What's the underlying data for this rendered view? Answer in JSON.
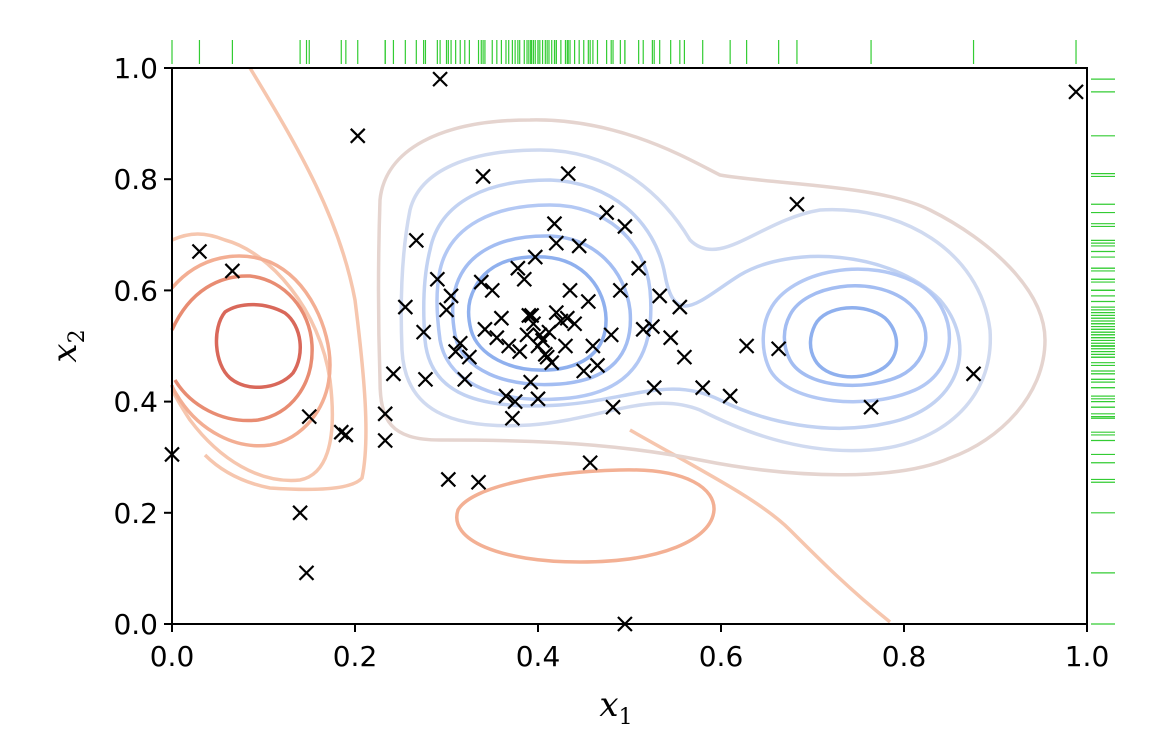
{
  "chart_data": {
    "type": "scatter",
    "xlabel": "x",
    "xlabel_sub": "1",
    "ylabel": "x",
    "ylabel_sub": "2",
    "xlim": [
      0.0,
      1.0
    ],
    "ylim": [
      0.0,
      1.0
    ],
    "xticks": [
      "0.0",
      "0.2",
      "0.4",
      "0.6",
      "0.8",
      "1.0"
    ],
    "yticks": [
      "0.0",
      "0.2",
      "0.4",
      "0.6",
      "0.8",
      "1.0"
    ],
    "grid": false,
    "marker": "x",
    "marker_color": "#000000",
    "rug_color": "#33cc33",
    "points": [
      [
        0.03,
        0.67
      ],
      [
        0.066,
        0.635
      ],
      [
        0.0,
        0.305
      ],
      [
        0.14,
        0.2
      ],
      [
        0.147,
        0.092
      ],
      [
        0.15,
        0.373
      ],
      [
        0.185,
        0.345
      ],
      [
        0.19,
        0.34
      ],
      [
        0.203,
        0.878
      ],
      [
        0.233,
        0.378
      ],
      [
        0.233,
        0.33
      ],
      [
        0.242,
        0.45
      ],
      [
        0.255,
        0.57
      ],
      [
        0.267,
        0.69
      ],
      [
        0.275,
        0.525
      ],
      [
        0.277,
        0.44
      ],
      [
        0.29,
        0.62
      ],
      [
        0.293,
        0.98
      ],
      [
        0.302,
        0.26
      ],
      [
        0.3,
        0.565
      ],
      [
        0.305,
        0.59
      ],
      [
        0.31,
        0.49
      ],
      [
        0.315,
        0.505
      ],
      [
        0.32,
        0.44
      ],
      [
        0.325,
        0.48
      ],
      [
        0.335,
        0.255
      ],
      [
        0.34,
        0.805
      ],
      [
        0.338,
        0.615
      ],
      [
        0.342,
        0.53
      ],
      [
        0.35,
        0.6
      ],
      [
        0.355,
        0.515
      ],
      [
        0.36,
        0.55
      ],
      [
        0.365,
        0.41
      ],
      [
        0.368,
        0.5
      ],
      [
        0.372,
        0.37
      ],
      [
        0.375,
        0.4
      ],
      [
        0.378,
        0.64
      ],
      [
        0.38,
        0.49
      ],
      [
        0.385,
        0.62
      ],
      [
        0.388,
        0.52
      ],
      [
        0.39,
        0.555
      ],
      [
        0.392,
        0.435
      ],
      [
        0.393,
        0.555
      ],
      [
        0.395,
        0.54
      ],
      [
        0.397,
        0.66
      ],
      [
        0.4,
        0.5
      ],
      [
        0.402,
        0.52
      ],
      [
        0.4,
        0.405
      ],
      [
        0.405,
        0.51
      ],
      [
        0.408,
        0.485
      ],
      [
        0.41,
        0.48
      ],
      [
        0.412,
        0.525
      ],
      [
        0.415,
        0.47
      ],
      [
        0.418,
        0.72
      ],
      [
        0.42,
        0.685
      ],
      [
        0.42,
        0.56
      ],
      [
        0.425,
        0.545
      ],
      [
        0.43,
        0.5
      ],
      [
        0.432,
        0.55
      ],
      [
        0.433,
        0.81
      ],
      [
        0.435,
        0.6
      ],
      [
        0.44,
        0.54
      ],
      [
        0.445,
        0.68
      ],
      [
        0.45,
        0.455
      ],
      [
        0.455,
        0.58
      ],
      [
        0.457,
        0.29
      ],
      [
        0.46,
        0.5
      ],
      [
        0.465,
        0.465
      ],
      [
        0.475,
        0.74
      ],
      [
        0.48,
        0.52
      ],
      [
        0.482,
        0.39
      ],
      [
        0.49,
        0.6
      ],
      [
        0.495,
        0.715
      ],
      [
        0.495,
        0.0
      ],
      [
        0.51,
        0.64
      ],
      [
        0.515,
        0.53
      ],
      [
        0.525,
        0.535
      ],
      [
        0.527,
        0.425
      ],
      [
        0.533,
        0.59
      ],
      [
        0.545,
        0.515
      ],
      [
        0.555,
        0.57
      ],
      [
        0.56,
        0.48
      ],
      [
        0.58,
        0.425
      ],
      [
        0.61,
        0.41
      ],
      [
        0.628,
        0.5
      ],
      [
        0.663,
        0.495
      ],
      [
        0.683,
        0.755
      ],
      [
        0.764,
        0.39
      ],
      [
        0.876,
        0.45
      ],
      [
        0.988,
        0.957
      ]
    ]
  }
}
